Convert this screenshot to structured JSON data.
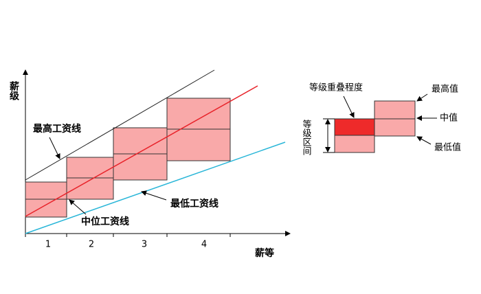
{
  "left_diagram": {
    "y_axis_label": "薪级",
    "x_axis_label": "薪等",
    "x_categories": [
      "1",
      "2",
      "3",
      "4"
    ],
    "max_line_label": "最高工资线",
    "mid_line_label": "中位工资线",
    "min_line_label": "最低工资线"
  },
  "right_diagram": {
    "overlap_label": "等级重叠程度",
    "range_label": "等级区间",
    "max_label": "最高值",
    "mid_label": "中值",
    "min_label": "最低值"
  }
}
